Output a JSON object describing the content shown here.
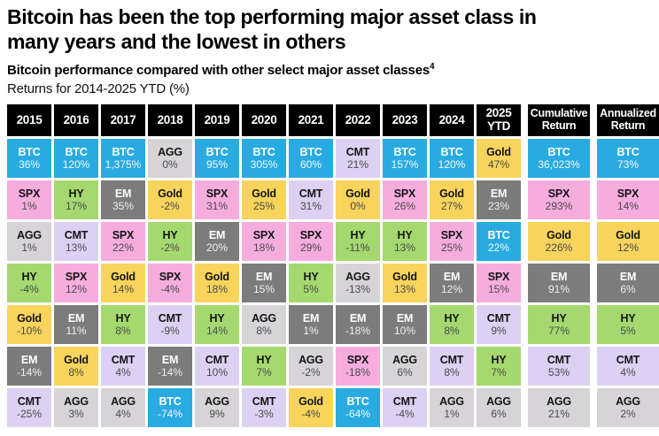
{
  "header": {
    "title_line1": "Bitcoin has been the top performing major asset class in",
    "title_line2": "many years and the lowest in others",
    "subtitle": "Bitcoin performance compared with other select major asset classes",
    "subtitle_footnote": "4",
    "caption": "Returns for 2014-2025 YTD (%)"
  },
  "chart_data": {
    "type": "table",
    "title": "Bitcoin has been the top performing major asset class in many years and the lowest in others",
    "subtitle": "Bitcoin performance compared with other select major asset classes",
    "caption": "Returns for 2014-2025 YTD (%)",
    "assets": {
      "BTC": {
        "color": "#29ABE2",
        "text": "#FFFFFF",
        "value_text": "#F2FAFE"
      },
      "SPX": {
        "color": "#F6ADDE",
        "text": "#141414",
        "value_text": "#4A4A4A"
      },
      "AGG": {
        "color": "#D7D4D8",
        "text": "#141414",
        "value_text": "#4A4A4A"
      },
      "HY": {
        "color": "#A5D96F",
        "text": "#141414",
        "value_text": "#4A4A4A"
      },
      "Gold": {
        "color": "#F8D45C",
        "text": "#141414",
        "value_text": "#4A4A4A"
      },
      "EM": {
        "color": "#7C7C7C",
        "text": "#FFFFFF",
        "value_text": "#EFEFEF"
      },
      "CMT": {
        "color": "#DCD1F2",
        "text": "#141414",
        "value_text": "#4A4A4A"
      }
    },
    "columns": [
      {
        "label": "2015",
        "summary": false,
        "cells": [
          {
            "asset": "BTC",
            "value": "36%"
          },
          {
            "asset": "SPX",
            "value": "1%"
          },
          {
            "asset": "AGG",
            "value": "1%"
          },
          {
            "asset": "HY",
            "value": "-4%"
          },
          {
            "asset": "Gold",
            "value": "-10%"
          },
          {
            "asset": "EM",
            "value": "-14%"
          },
          {
            "asset": "CMT",
            "value": "-25%"
          }
        ]
      },
      {
        "label": "2016",
        "summary": false,
        "cells": [
          {
            "asset": "BTC",
            "value": "120%"
          },
          {
            "asset": "HY",
            "value": "17%"
          },
          {
            "asset": "CMT",
            "value": "13%"
          },
          {
            "asset": "SPX",
            "value": "12%"
          },
          {
            "asset": "EM",
            "value": "11%"
          },
          {
            "asset": "Gold",
            "value": "8%"
          },
          {
            "asset": "AGG",
            "value": "3%"
          }
        ]
      },
      {
        "label": "2017",
        "summary": false,
        "cells": [
          {
            "asset": "BTC",
            "value": "1,375%"
          },
          {
            "asset": "EM",
            "value": "35%"
          },
          {
            "asset": "SPX",
            "value": "22%"
          },
          {
            "asset": "Gold",
            "value": "14%"
          },
          {
            "asset": "HY",
            "value": "8%"
          },
          {
            "asset": "CMT",
            "value": "4%"
          },
          {
            "asset": "AGG",
            "value": "4%"
          }
        ]
      },
      {
        "label": "2018",
        "summary": false,
        "cells": [
          {
            "asset": "AGG",
            "value": "0%"
          },
          {
            "asset": "Gold",
            "value": "-2%"
          },
          {
            "asset": "HY",
            "value": "-2%"
          },
          {
            "asset": "SPX",
            "value": "-4%"
          },
          {
            "asset": "CMT",
            "value": "-9%"
          },
          {
            "asset": "EM",
            "value": "-14%"
          },
          {
            "asset": "BTC",
            "value": "-74%"
          }
        ]
      },
      {
        "label": "2019",
        "summary": false,
        "cells": [
          {
            "asset": "BTC",
            "value": "95%"
          },
          {
            "asset": "SPX",
            "value": "31%"
          },
          {
            "asset": "EM",
            "value": "20%"
          },
          {
            "asset": "Gold",
            "value": "18%"
          },
          {
            "asset": "HY",
            "value": "14%"
          },
          {
            "asset": "CMT",
            "value": "10%"
          },
          {
            "asset": "AGG",
            "value": "9%"
          }
        ]
      },
      {
        "label": "2020",
        "summary": false,
        "cells": [
          {
            "asset": "BTC",
            "value": "305%"
          },
          {
            "asset": "Gold",
            "value": "25%"
          },
          {
            "asset": "SPX",
            "value": "18%"
          },
          {
            "asset": "EM",
            "value": "15%"
          },
          {
            "asset": "AGG",
            "value": "8%"
          },
          {
            "asset": "HY",
            "value": "7%"
          },
          {
            "asset": "CMT",
            "value": "-3%"
          }
        ]
      },
      {
        "label": "2021",
        "summary": false,
        "cells": [
          {
            "asset": "BTC",
            "value": "60%"
          },
          {
            "asset": "CMT",
            "value": "31%"
          },
          {
            "asset": "SPX",
            "value": "29%"
          },
          {
            "asset": "HY",
            "value": "5%"
          },
          {
            "asset": "EM",
            "value": "1%"
          },
          {
            "asset": "AGG",
            "value": "-2%"
          },
          {
            "asset": "Gold",
            "value": "-4%"
          }
        ]
      },
      {
        "label": "2022",
        "summary": false,
        "cells": [
          {
            "asset": "CMT",
            "value": "21%"
          },
          {
            "asset": "Gold",
            "value": "0%"
          },
          {
            "asset": "HY",
            "value": "-11%"
          },
          {
            "asset": "AGG",
            "value": "-13%"
          },
          {
            "asset": "EM",
            "value": "-18%"
          },
          {
            "asset": "SPX",
            "value": "-18%"
          },
          {
            "asset": "BTC",
            "value": "-64%"
          }
        ]
      },
      {
        "label": "2023",
        "summary": false,
        "cells": [
          {
            "asset": "BTC",
            "value": "157%"
          },
          {
            "asset": "SPX",
            "value": "26%"
          },
          {
            "asset": "HY",
            "value": "13%"
          },
          {
            "asset": "Gold",
            "value": "13%"
          },
          {
            "asset": "EM",
            "value": "10%"
          },
          {
            "asset": "AGG",
            "value": "6%"
          },
          {
            "asset": "CMT",
            "value": "-4%"
          }
        ]
      },
      {
        "label": "2024",
        "summary": false,
        "cells": [
          {
            "asset": "BTC",
            "value": "120%"
          },
          {
            "asset": "Gold",
            "value": "27%"
          },
          {
            "asset": "SPX",
            "value": "25%"
          },
          {
            "asset": "EM",
            "value": "12%"
          },
          {
            "asset": "HY",
            "value": "8%"
          },
          {
            "asset": "CMT",
            "value": "8%"
          },
          {
            "asset": "AGG",
            "value": "1%"
          }
        ]
      },
      {
        "label": "2025 YTD",
        "summary": false,
        "cells": [
          {
            "asset": "Gold",
            "value": "47%"
          },
          {
            "asset": "EM",
            "value": "23%"
          },
          {
            "asset": "BTC",
            "value": "22%"
          },
          {
            "asset": "SPX",
            "value": "15%"
          },
          {
            "asset": "CMT",
            "value": "9%"
          },
          {
            "asset": "HY",
            "value": "7%"
          },
          {
            "asset": "AGG",
            "value": "6%"
          }
        ]
      },
      {
        "label": "Cumulative Return",
        "summary": true,
        "cells": [
          {
            "asset": "BTC",
            "value": "36,023%"
          },
          {
            "asset": "SPX",
            "value": "293%"
          },
          {
            "asset": "Gold",
            "value": "226%"
          },
          {
            "asset": "EM",
            "value": "91%"
          },
          {
            "asset": "HY",
            "value": "77%"
          },
          {
            "asset": "CMT",
            "value": "53%"
          },
          {
            "asset": "AGG",
            "value": "21%"
          }
        ]
      },
      {
        "label": "Annualized Return",
        "summary": true,
        "cells": [
          {
            "asset": "BTC",
            "value": "73%"
          },
          {
            "asset": "SPX",
            "value": "14%"
          },
          {
            "asset": "Gold",
            "value": "12%"
          },
          {
            "asset": "EM",
            "value": "6%"
          },
          {
            "asset": "HY",
            "value": "5%"
          },
          {
            "asset": "CMT",
            "value": "4%"
          },
          {
            "asset": "AGG",
            "value": "2%"
          }
        ]
      }
    ]
  }
}
